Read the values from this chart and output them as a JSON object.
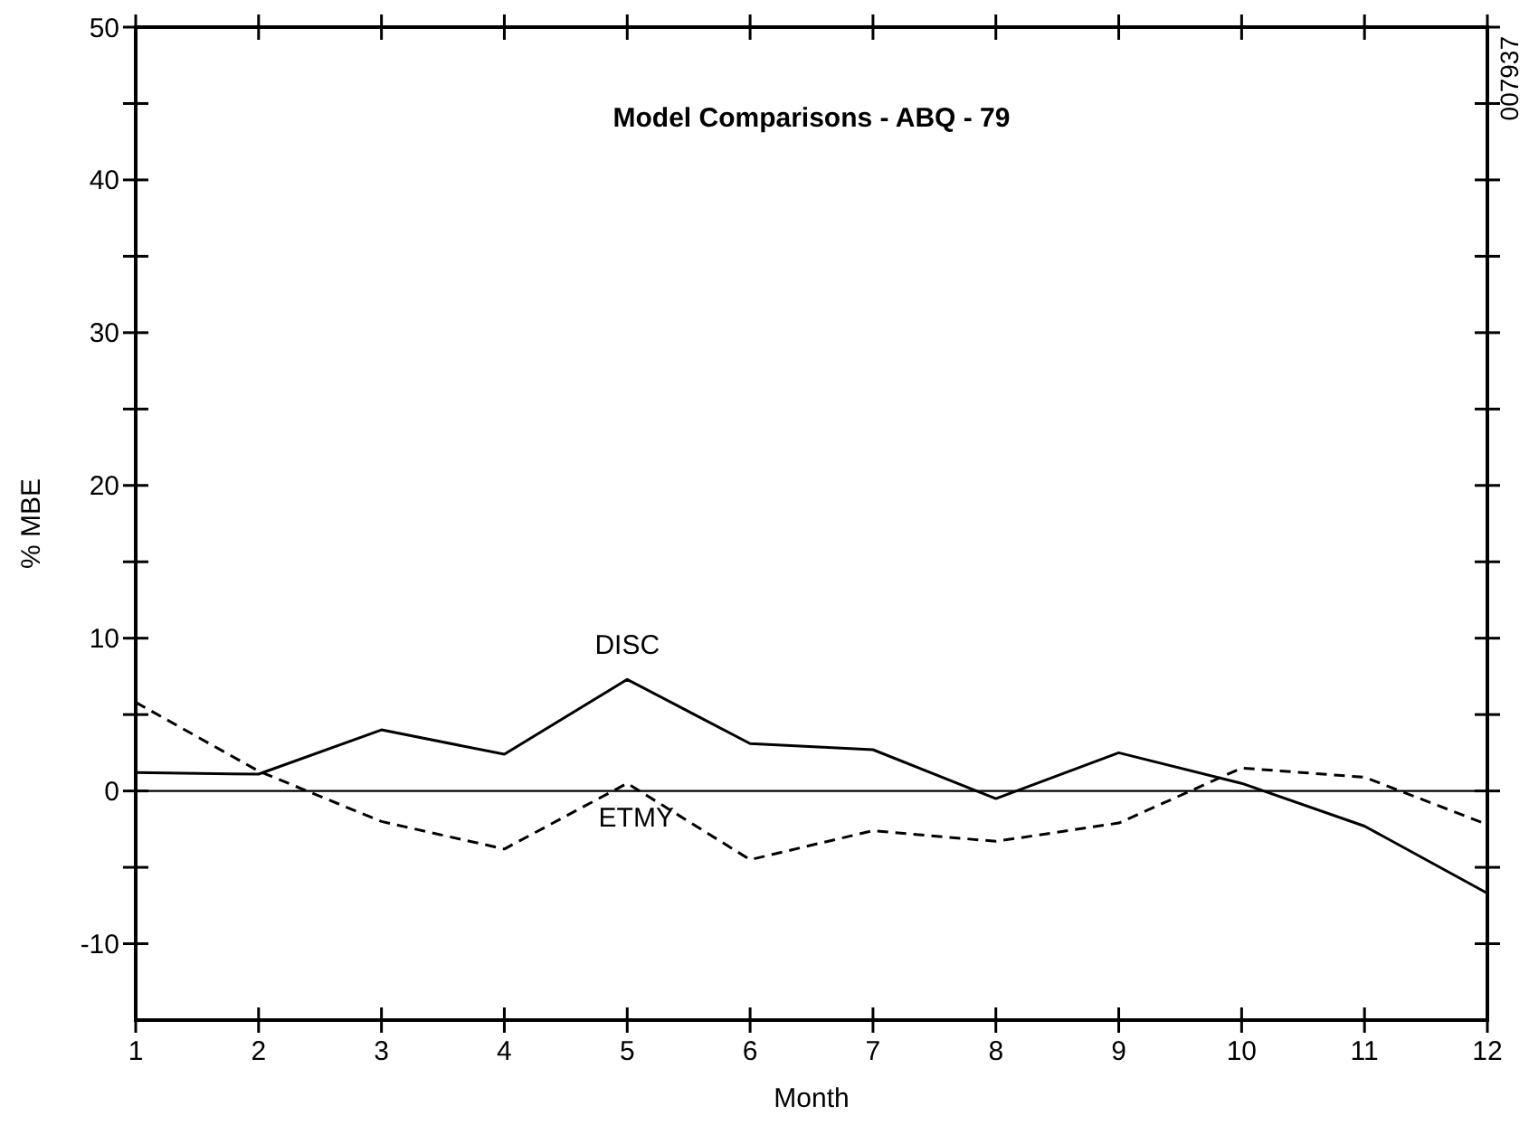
{
  "chart_data": {
    "type": "line",
    "title": "Model Comparisons - ABQ - 79",
    "xlabel": "Month",
    "ylabel": "% MBE",
    "annotations": [
      "007937"
    ],
    "x": [
      1,
      2,
      3,
      4,
      5,
      6,
      7,
      8,
      9,
      10,
      11,
      12
    ],
    "series": [
      {
        "name": "DISC",
        "color": "#000000",
        "line_style": "solid",
        "values": [
          1.2,
          1.1,
          4.0,
          2.4,
          7.3,
          3.1,
          2.7,
          -0.5,
          2.5,
          0.5,
          -2.3,
          -6.7
        ]
      },
      {
        "name": "ETMY",
        "color": "#000000",
        "line_style": "dashed",
        "values": [
          5.8,
          1.3,
          -2.0,
          -3.8,
          0.5,
          -4.5,
          -2.6,
          -3.3,
          -2.1,
          1.5,
          0.9,
          -2.2
        ]
      }
    ],
    "xlim": [
      1,
      12
    ],
    "xticks": [
      1,
      2,
      3,
      4,
      5,
      6,
      7,
      8,
      9,
      10,
      11,
      12
    ],
    "ylim": [
      -15,
      50
    ],
    "yticks": [
      -10,
      {
        "value": -5,
        "label": null
      },
      0,
      {
        "value": 5,
        "label": null
      },
      10,
      {
        "value": 15,
        "label": null
      },
      20,
      {
        "value": 25,
        "label": null
      },
      30,
      {
        "value": 35,
        "label": null
      },
      40,
      {
        "value": 45,
        "label": null
      },
      50
    ],
    "ref_lines": [
      {
        "axis": "y",
        "value": 0,
        "color": "#000000"
      }
    ],
    "grid": false,
    "legend": false,
    "marker": "none"
  }
}
